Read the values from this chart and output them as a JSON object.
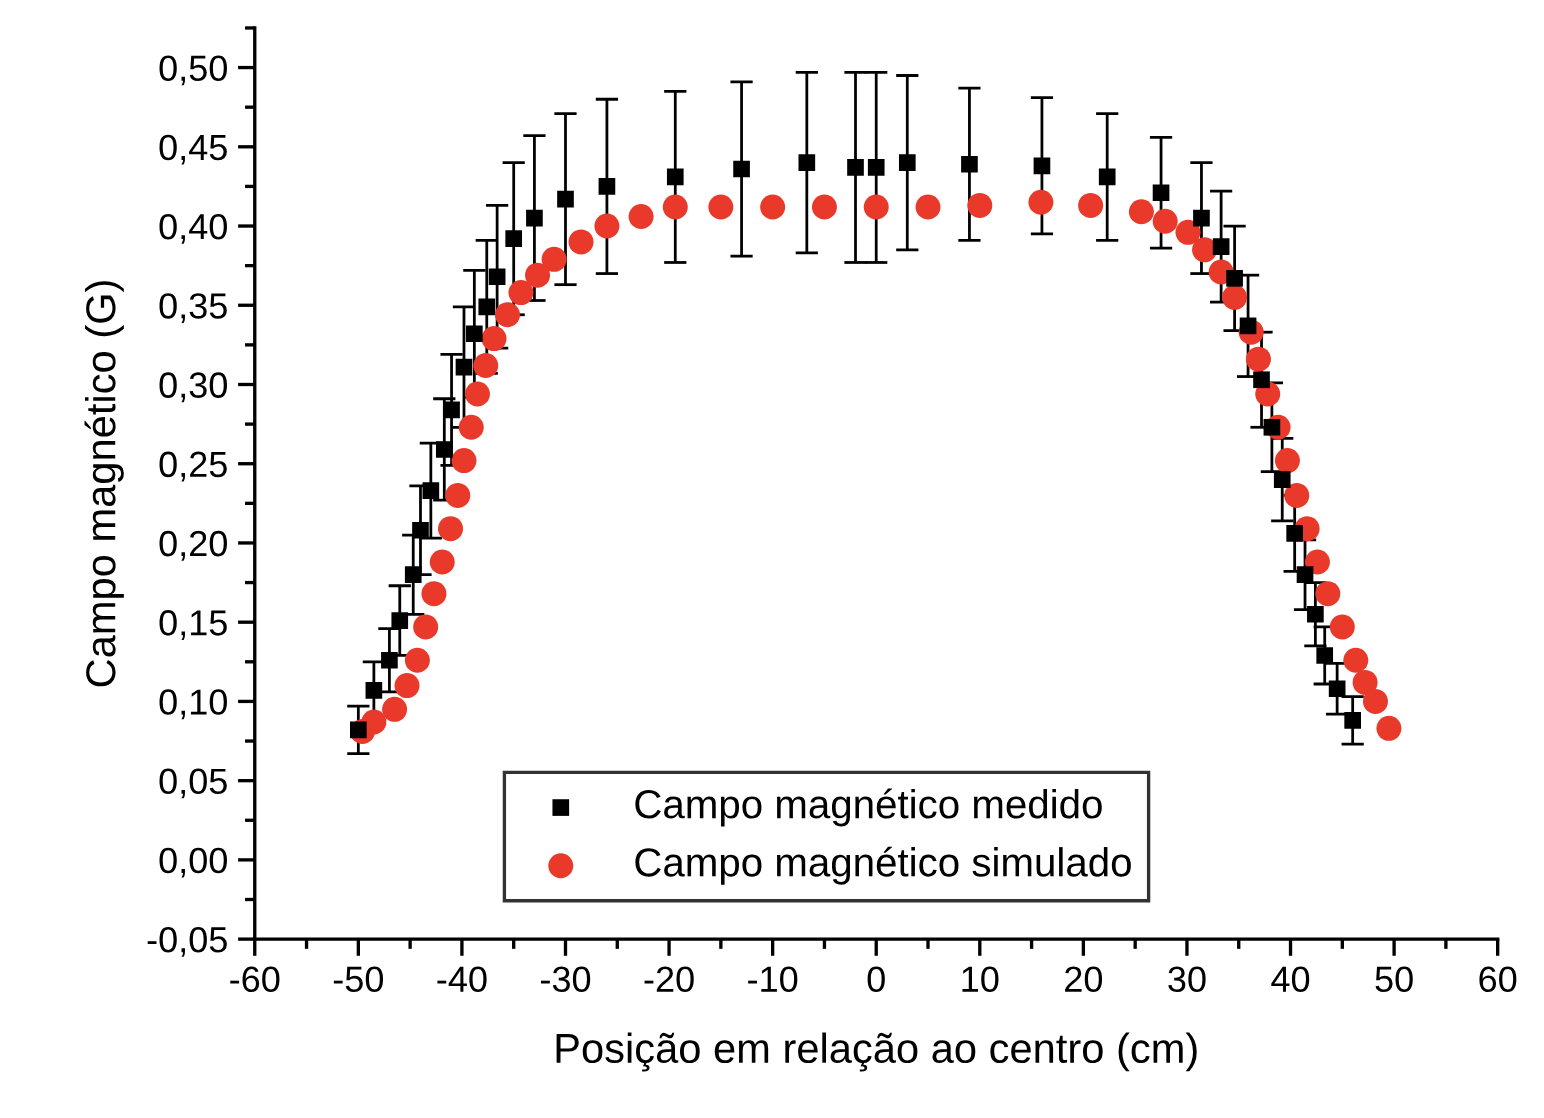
{
  "chart_data": {
    "type": "scatter",
    "xlabel": "Posição em relação ao centro (cm)",
    "ylabel": "Campo magnético (G)",
    "xlim": [
      -60,
      60
    ],
    "xticks": [
      -60,
      -50,
      -40,
      -30,
      -20,
      -10,
      0,
      10,
      20,
      30,
      40,
      50,
      60
    ],
    "ylim": [
      -0.05,
      0.525
    ],
    "yticks": [
      {
        "value": -0.05,
        "label": "-0,05"
      },
      {
        "value": 0,
        "label": "0,00"
      },
      {
        "value": 0.05,
        "label": "0,05"
      },
      {
        "value": 0.1,
        "label": "0,10"
      },
      {
        "value": 0.15,
        "label": "0,15"
      },
      {
        "value": 0.2,
        "label": "0,20"
      },
      {
        "value": 0.25,
        "label": "0,25"
      },
      {
        "value": 0.3,
        "label": "0,30"
      },
      {
        "value": 0.35,
        "label": "0,35"
      },
      {
        "value": 0.4,
        "label": "0,40"
      },
      {
        "value": 0.45,
        "label": "0,45"
      },
      {
        "value": 0.5,
        "label": "0,50"
      }
    ],
    "grid": false,
    "legend": "bottom",
    "series": [
      {
        "name": "Campo magnético medido",
        "color": "#000000",
        "marker": "square",
        "x": [
          -50,
          -48.5,
          -47,
          -46,
          -44.7,
          -44,
          -43,
          -41.7,
          -41,
          -39.8,
          -38.8,
          -37.6,
          -36.6,
          -35,
          -33,
          -30,
          -26,
          -19.4,
          -13,
          -6.7,
          -2,
          0,
          3,
          9,
          16,
          22.3,
          27.5,
          31.4,
          33.3,
          34.6,
          35.9,
          37.2,
          38.2,
          39.2,
          40.4,
          41.4,
          42.4,
          43.3,
          44.5,
          46
        ],
        "values": [
          0.082,
          0.107,
          0.126,
          0.151,
          0.18,
          0.208,
          0.233,
          0.259,
          0.284,
          0.311,
          0.332,
          0.349,
          0.368,
          0.392,
          0.405,
          0.417,
          0.425,
          0.431,
          0.436,
          0.44,
          0.437,
          0.437,
          0.44,
          0.439,
          0.438,
          0.431,
          0.421,
          0.405,
          0.387,
          0.367,
          0.337,
          0.303,
          0.273,
          0.24,
          0.206,
          0.18,
          0.155,
          0.129,
          0.108,
          0.088
        ],
        "errors": [
          0.015,
          0.018,
          0.02,
          0.022,
          0.025,
          0.028,
          0.03,
          0.032,
          0.035,
          0.038,
          0.04,
          0.042,
          0.045,
          0.048,
          0.052,
          0.054,
          0.055,
          0.054,
          0.055,
          0.057,
          0.06,
          0.06,
          0.055,
          0.048,
          0.043,
          0.04,
          0.035,
          0.035,
          0.035,
          0.033,
          0.032,
          0.03,
          0.028,
          0.026,
          0.024,
          0.022,
          0.02,
          0.018,
          0.016,
          0.015
        ]
      },
      {
        "name": "Campo magnético simulado",
        "color": "#e8392a",
        "marker": "circle",
        "x": [
          -49.6,
          -48.5,
          -46.5,
          -45.3,
          -44.3,
          -43.5,
          -42.7,
          -41.9,
          -41.1,
          -40.4,
          -39.8,
          -39.1,
          -38.5,
          -37.7,
          -36.9,
          -35.6,
          -34.3,
          -32.7,
          -31.1,
          -28.5,
          -26,
          -22.7,
          -19.4,
          -15,
          -10,
          -5,
          0,
          5,
          10,
          15.9,
          20.7,
          25.6,
          27.9,
          30.1,
          31.7,
          33.3,
          34.6,
          36.2,
          36.9,
          37.8,
          38.8,
          39.7,
          40.6,
          41.6,
          42.6,
          43.6,
          45,
          46.3,
          47.2,
          48.2,
          49.5
        ],
        "values": [
          0.081,
          0.087,
          0.095,
          0.11,
          0.126,
          0.147,
          0.168,
          0.188,
          0.209,
          0.23,
          0.252,
          0.273,
          0.294,
          0.312,
          0.329,
          0.344,
          0.358,
          0.369,
          0.379,
          0.39,
          0.4,
          0.406,
          0.412,
          0.412,
          0.412,
          0.412,
          0.412,
          0.412,
          0.413,
          0.415,
          0.413,
          0.409,
          0.403,
          0.396,
          0.385,
          0.371,
          0.355,
          0.333,
          0.316,
          0.294,
          0.273,
          0.252,
          0.23,
          0.209,
          0.188,
          0.168,
          0.147,
          0.126,
          0.112,
          0.1,
          0.083
        ]
      }
    ]
  }
}
